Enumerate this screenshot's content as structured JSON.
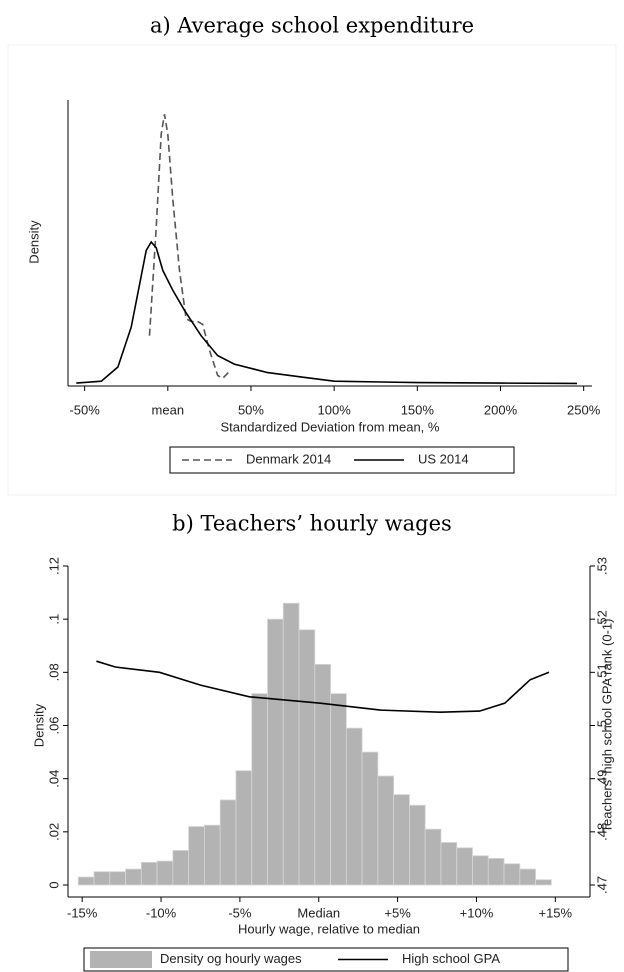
{
  "chart_data": [
    {
      "type": "line",
      "title": "a) Average school expenditure",
      "x_label": "Standardized Deviation from mean, %",
      "y_label": "Density",
      "xlim": [
        -60,
        255
      ],
      "ylim": [
        0,
        1
      ],
      "xticks": [
        {
          "value": -50,
          "label": "-50%"
        },
        {
          "value": 0,
          "label": "mean"
        },
        {
          "value": 50,
          "label": "50%"
        },
        {
          "value": 100,
          "label": "100%"
        },
        {
          "value": 150,
          "label": "150%"
        },
        {
          "value": 200,
          "label": "200%"
        },
        {
          "value": 250,
          "label": "250%"
        }
      ],
      "series": [
        {
          "name": "Denmark 2014",
          "color": "#555555",
          "style": "dashed",
          "x": [
            -11,
            -7,
            -4,
            -2,
            0,
            3,
            7,
            11,
            14,
            18,
            21,
            25,
            30,
            33,
            38
          ],
          "values": [
            0.17,
            0.55,
            0.88,
            0.95,
            0.88,
            0.65,
            0.4,
            0.23,
            0.22,
            0.22,
            0.21,
            0.12,
            0.03,
            0.02,
            0.05
          ]
        },
        {
          "name": "US 2014",
          "color": "#000000",
          "style": "solid",
          "x": [
            -55,
            -40,
            -30,
            -22,
            -16,
            -13,
            -10,
            -7,
            -3,
            3,
            10,
            20,
            30,
            40,
            60,
            80,
            100,
            150,
            200,
            246
          ],
          "values": [
            0.003,
            0.01,
            0.06,
            0.2,
            0.38,
            0.47,
            0.5,
            0.48,
            0.4,
            0.33,
            0.26,
            0.17,
            0.1,
            0.07,
            0.04,
            0.025,
            0.01,
            0.005,
            0.003,
            0.002
          ]
        }
      ]
    },
    {
      "type": "histogram",
      "title": "b) Teachers’ hourly wages",
      "x_label": "Hourly wage, relative to median",
      "y_label": "Density",
      "y2_label": "Teachers' high school GPA rank (0-1)",
      "xlim": [
        -15.9,
        17.2
      ],
      "ylim": [
        0,
        0.12
      ],
      "y2lim": [
        0.47,
        0.53
      ],
      "xticks": [
        {
          "value": -15,
          "label": "-15%"
        },
        {
          "value": -10,
          "label": "-10%"
        },
        {
          "value": -5,
          "label": "-5%"
        },
        {
          "value": 0,
          "label": "Median"
        },
        {
          "value": 5,
          "label": "+5%"
        },
        {
          "value": 10,
          "label": "+10%"
        },
        {
          "value": 15,
          "label": "+15%"
        }
      ],
      "yticks": [
        0,
        {
          "value": 0.02,
          "label": ".02"
        },
        {
          "value": 0.04,
          "label": ".04"
        },
        {
          "value": 0.06,
          "label": ".06"
        },
        {
          "value": 0.08,
          "label": ".08"
        },
        {
          "value": 0.1,
          "label": ".1"
        },
        {
          "value": 0.12,
          "label": ".12"
        }
      ],
      "y2ticks": [
        {
          "value": 0.47,
          "label": ".47"
        },
        {
          "value": 0.48,
          "label": ".48"
        },
        {
          "value": 0.49,
          "label": ".49"
        },
        {
          "value": 0.5,
          "label": ".5"
        },
        {
          "value": 0.51,
          "label": ".51"
        },
        {
          "value": 0.52,
          "label": ".52"
        },
        {
          "value": 0.53,
          "label": ".53"
        }
      ],
      "bins": [
        -15.25,
        -14.25,
        -13.25,
        -12.25,
        -11.25,
        -10.25,
        -9.25,
        -8.25,
        -7.25,
        -6.25,
        -5.25,
        -4.25,
        -3.25,
        -2.25,
        -1.25,
        -0.25,
        0.75,
        1.75,
        2.75,
        3.75,
        4.75,
        5.75,
        6.75,
        7.75,
        8.75,
        9.75,
        10.75,
        11.75,
        12.75,
        13.75,
        14.75
      ],
      "series": [
        {
          "name": "Density og hourly wages",
          "color": "#b3b3b3",
          "values": [
            0.003,
            0.005,
            0.005,
            0.006,
            0.0085,
            0.009,
            0.013,
            0.022,
            0.0225,
            0.032,
            0.043,
            0.072,
            0.1,
            0.106,
            0.096,
            0.083,
            0.072,
            0.059,
            0.05,
            0.041,
            0.034,
            0.03,
            0.021,
            0.016,
            0.014,
            0.011,
            0.01,
            0.008,
            0.006,
            0.002
          ]
        },
        {
          "name": "High school GPA",
          "color": "#000000",
          "axis": "y2",
          "x": [
            -14.1,
            -12.9,
            -10.1,
            -7.5,
            -4.4,
            0.1,
            3.9,
            7.7,
            10.2,
            11.8,
            13.4,
            14.6
          ],
          "values": [
            0.5121,
            0.511,
            0.51,
            0.5076,
            0.5054,
            0.5042,
            0.5029,
            0.5025,
            0.5027,
            0.5042,
            0.5086,
            0.51
          ]
        }
      ]
    }
  ]
}
